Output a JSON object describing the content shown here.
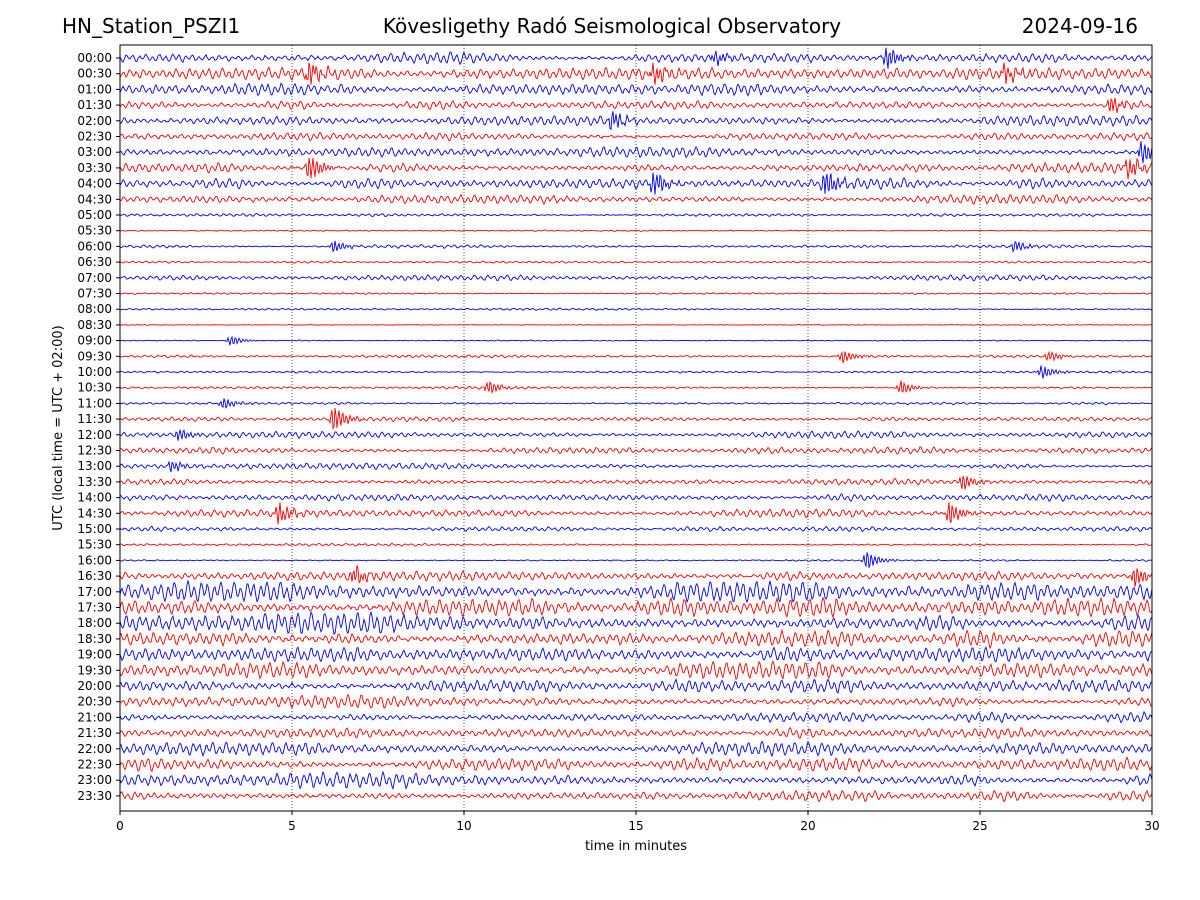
{
  "header": {
    "station": "HN_Station_PSZI1",
    "observatory": "Kövesligethy Radó Seismological Observatory",
    "date": "2024-09-16"
  },
  "chart_data": {
    "type": "line",
    "chart_kind": "helicorder (seismogram drum plot)",
    "xlabel": "time in minutes",
    "ylabel": "UTC (local time = UTC + 02:00)",
    "xlim": [
      0,
      30
    ],
    "x_ticks": [
      0,
      5,
      10,
      15,
      20,
      25,
      30
    ],
    "grid": "dotted vertical lines at every 5 minutes",
    "colors": {
      "even_trace": "#0000ff",
      "odd_trace": "#ff0000",
      "grid": "#000000"
    },
    "rows": [
      "00:00",
      "00:30",
      "01:00",
      "01:30",
      "02:00",
      "02:30",
      "03:00",
      "03:30",
      "04:00",
      "04:30",
      "05:00",
      "05:30",
      "06:00",
      "06:30",
      "07:00",
      "07:30",
      "08:00",
      "08:30",
      "09:00",
      "09:30",
      "10:00",
      "10:30",
      "11:00",
      "11:30",
      "12:00",
      "12:30",
      "13:00",
      "13:30",
      "14:00",
      "14:30",
      "15:00",
      "15:30",
      "16:00",
      "16:30",
      "17:00",
      "17:30",
      "18:00",
      "18:30",
      "19:00",
      "19:30",
      "20:00",
      "20:30",
      "21:00",
      "21:30",
      "22:00",
      "22:30",
      "23:00",
      "23:30"
    ],
    "noise_level": [
      0.55,
      0.6,
      0.6,
      0.45,
      0.45,
      0.4,
      0.5,
      0.6,
      0.55,
      0.4,
      0.15,
      0.05,
      0.18,
      0.1,
      0.25,
      0.08,
      0.1,
      0.03,
      0.04,
      0.12,
      0.1,
      0.12,
      0.12,
      0.22,
      0.3,
      0.35,
      0.3,
      0.35,
      0.38,
      0.35,
      0.25,
      0.12,
      0.08,
      0.5,
      0.95,
      1.0,
      1.05,
      0.9,
      0.85,
      0.75,
      0.7,
      0.6,
      0.55,
      0.55,
      0.6,
      0.7,
      0.75,
      0.6
    ],
    "events": [
      {
        "row": "00:00",
        "minute": 17.3,
        "amp": 0.6
      },
      {
        "row": "00:00",
        "minute": 22.3,
        "amp": 1.0
      },
      {
        "row": "00:30",
        "minute": 25.7,
        "amp": 0.8
      },
      {
        "row": "00:30",
        "minute": 5.5,
        "amp": 1.0
      },
      {
        "row": "00:30",
        "minute": 15.5,
        "amp": 0.9
      },
      {
        "row": "01:30",
        "minute": 28.8,
        "amp": 0.7
      },
      {
        "row": "02:00",
        "minute": 14.3,
        "amp": 0.8
      },
      {
        "row": "03:00",
        "minute": 29.7,
        "amp": 1.1
      },
      {
        "row": "03:30",
        "minute": 5.5,
        "amp": 1.2
      },
      {
        "row": "03:30",
        "minute": 29.3,
        "amp": 1.0
      },
      {
        "row": "04:00",
        "minute": 15.5,
        "amp": 1.1
      },
      {
        "row": "04:00",
        "minute": 20.5,
        "amp": 1.2
      },
      {
        "row": "06:00",
        "minute": 6.2,
        "amp": 0.5
      },
      {
        "row": "06:00",
        "minute": 26.0,
        "amp": 0.5
      },
      {
        "row": "09:00",
        "minute": 3.2,
        "amp": 0.4
      },
      {
        "row": "09:30",
        "minute": 21.0,
        "amp": 0.6
      },
      {
        "row": "09:30",
        "minute": 27.0,
        "amp": 0.5
      },
      {
        "row": "10:00",
        "minute": 26.8,
        "amp": 0.6
      },
      {
        "row": "10:30",
        "minute": 10.7,
        "amp": 0.6
      },
      {
        "row": "10:30",
        "minute": 22.7,
        "amp": 0.6
      },
      {
        "row": "11:00",
        "minute": 3.0,
        "amp": 0.5
      },
      {
        "row": "11:30",
        "minute": 6.2,
        "amp": 1.2
      },
      {
        "row": "12:00",
        "minute": 1.7,
        "amp": 0.6
      },
      {
        "row": "13:00",
        "minute": 1.5,
        "amp": 0.5
      },
      {
        "row": "13:30",
        "minute": 24.5,
        "amp": 0.7
      },
      {
        "row": "14:30",
        "minute": 4.6,
        "amp": 1.0
      },
      {
        "row": "14:30",
        "minute": 24.1,
        "amp": 1.0
      },
      {
        "row": "16:00",
        "minute": 21.7,
        "amp": 0.8
      },
      {
        "row": "16:30",
        "minute": 6.8,
        "amp": 0.8
      },
      {
        "row": "16:30",
        "minute": 29.5,
        "amp": 0.9
      }
    ]
  }
}
